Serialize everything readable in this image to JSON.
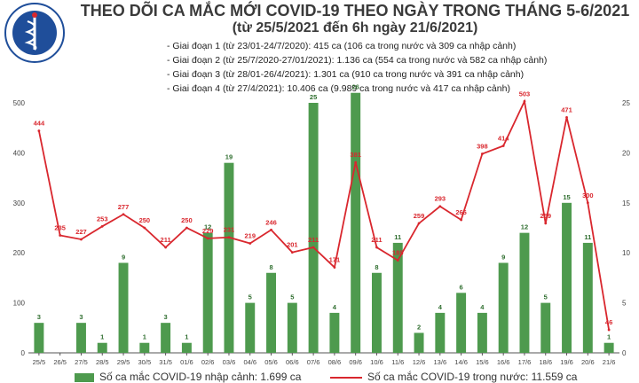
{
  "header": {
    "title": "THEO DÕI CA MẮC MỚI COVID-19 THEO NGÀY TRONG THÁNG 5-6/2021",
    "subtitle": "(từ 25/5/2021 đến 6h ngày 21/6/2021)",
    "logo_text": "BỘ Y TẾ",
    "logo_subtext": "MINISTRY OF HEALTH"
  },
  "phases": [
    "- Giai đoạn 1 (từ 23/01-24/7/2020): 415 ca (106 ca trong nước và 309 ca nhập cảnh)",
    "- Giai đoạn 2 (từ 25/7/2020-27/01/2021): 1.136 ca (554 ca trong nước và 582 ca nhập cảnh)",
    "- Giai đoạn 3 (từ 28/01-26/4/2021): 1.301 ca (910 ca trong nước và 391 ca nhập cảnh)",
    "- Giai đoạn 4 (từ 27/4/2021): 10.406 ca (9.989 ca trong nước và 417 ca nhập cảnh)"
  ],
  "legend": {
    "bars": "Số ca mắc COVID-19 nhập cảnh: 1.699 ca",
    "line": "Số ca mắc COVID-19 trong nước: 11.559 ca"
  },
  "colors": {
    "bar": "#4e9a4e",
    "line": "#d9272e",
    "axis": "#555555"
  },
  "chart_data": {
    "type": "bar+line",
    "categories": [
      "25/5",
      "26/5",
      "27/5",
      "28/5",
      "29/5",
      "30/5",
      "31/5",
      "01/6",
      "02/6",
      "03/6",
      "04/6",
      "05/6",
      "06/6",
      "07/6",
      "08/6",
      "09/6",
      "10/6",
      "11/6",
      "12/6",
      "13/6",
      "14/6",
      "15/6",
      "16/6",
      "17/6",
      "18/6",
      "19/6",
      "20/6",
      "21/6"
    ],
    "series": [
      {
        "name": "Số ca mắc COVID-19 nhập cảnh: 1.699 ca",
        "type": "bar",
        "axis": "right",
        "values": [
          3,
          0,
          3,
          1,
          9,
          1,
          3,
          1,
          12,
          19,
          5,
          8,
          5,
          25,
          4,
          26,
          8,
          11,
          2,
          4,
          6,
          4,
          9,
          12,
          5,
          15,
          11,
          1
        ]
      },
      {
        "name": "Số ca mắc COVID-19 trong nước: 11.559 ca",
        "type": "line",
        "axis": "left",
        "values": [
          444,
          235,
          227,
          253,
          277,
          250,
          211,
          250,
          229,
          231,
          219,
          246,
          201,
          211,
          171,
          381,
          211,
          185,
          259,
          293,
          266,
          398,
          414,
          503,
          259,
          471,
          300,
          46
        ]
      }
    ],
    "y_left": {
      "ylim": [
        0,
        500
      ],
      "ticks": [
        0,
        100,
        200,
        300,
        400,
        500
      ]
    },
    "y_right": {
      "ylim": [
        0,
        25
      ],
      "ticks": [
        0,
        5,
        10,
        15,
        20,
        25
      ]
    },
    "bar_labels": [
      "3",
      "",
      "3",
      "1",
      "9",
      "1",
      "3",
      "1",
      "12",
      "19",
      "5",
      "8",
      "5",
      "25",
      "4",
      "26",
      "8",
      "11",
      "2",
      "4",
      "6",
      "4",
      "9",
      "12",
      "5",
      "15",
      "11",
      "1"
    ],
    "line_labels": [
      "444",
      "235",
      "227",
      "253",
      "277",
      "250",
      "211",
      "250",
      "229",
      "231",
      "219",
      "246",
      "201",
      "211",
      "171",
      "381",
      "211",
      "185",
      "259",
      "293",
      "266",
      "398",
      "414",
      "503",
      "259",
      "471",
      "300",
      "46"
    ],
    "grid": false,
    "legend_position": "bottom"
  }
}
